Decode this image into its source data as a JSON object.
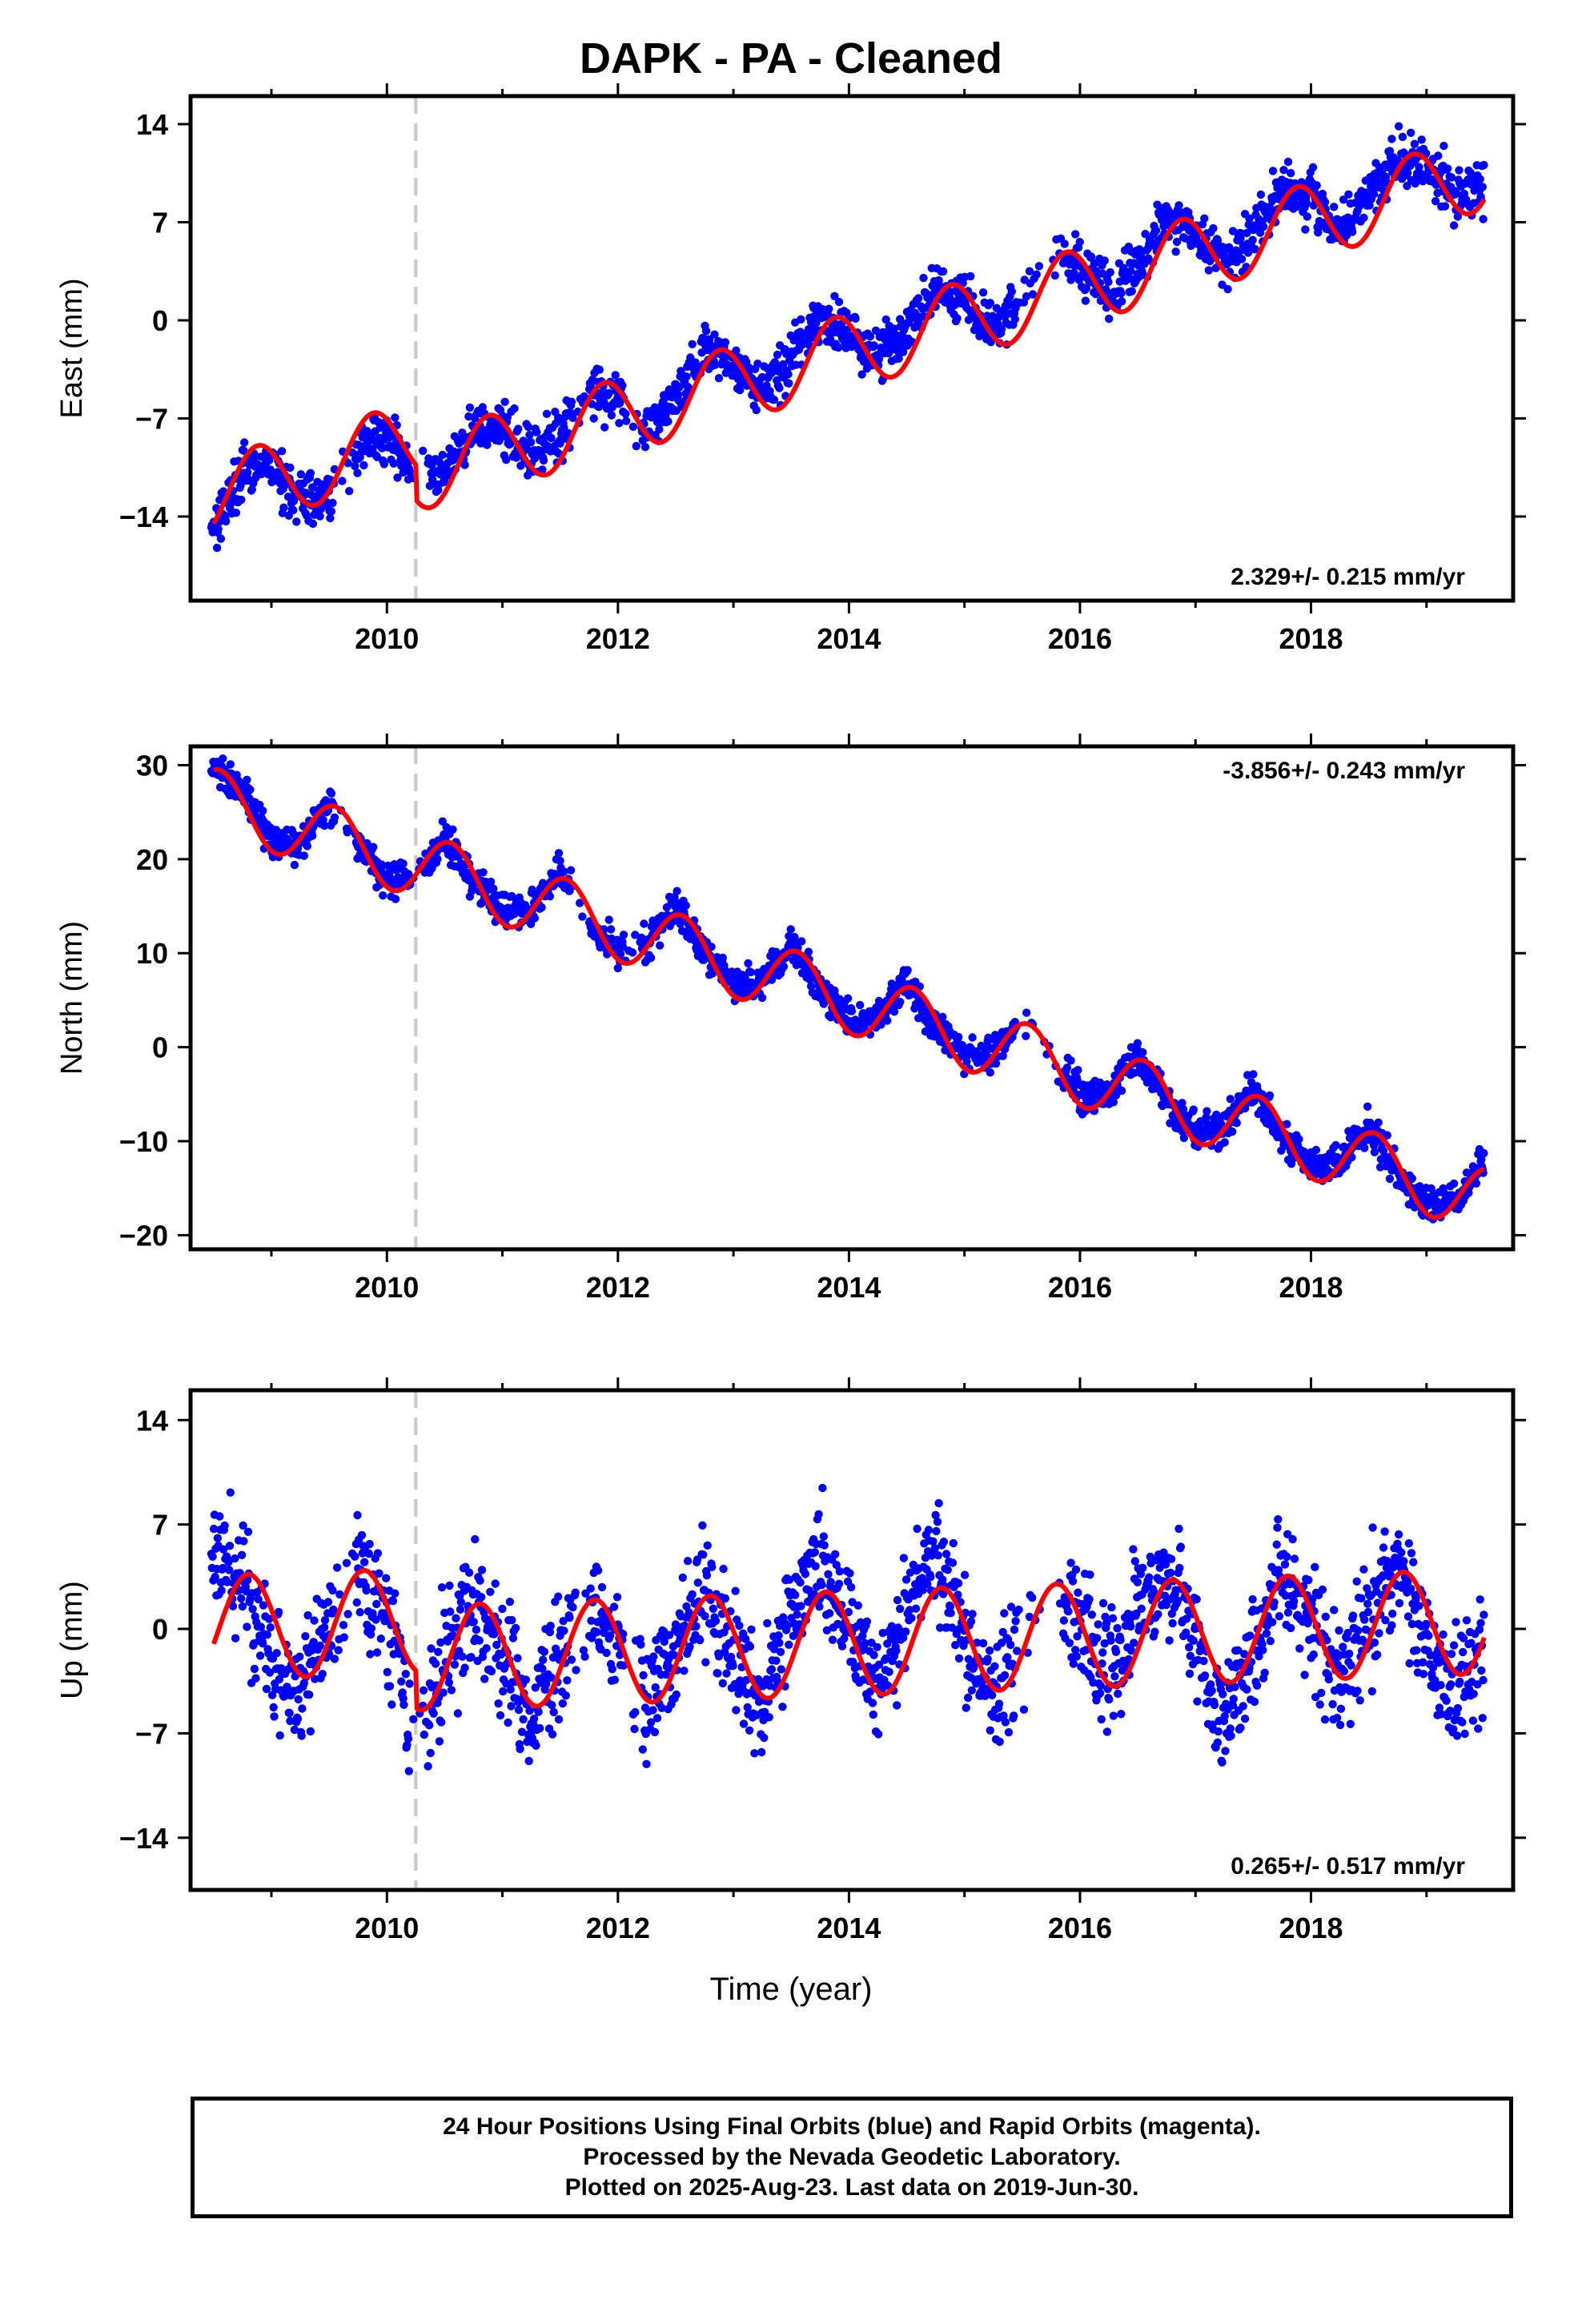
{
  "title": "DAPK  - PA - Cleaned",
  "xaxis_title": "Time (year)",
  "footer": {
    "line1": "24 Hour Positions Using Final Orbits (blue) and Rapid Orbits (magenta).",
    "line2": "Processed by the Nevada Geodetic Laboratory.",
    "line3": "Plotted on 2025-Aug-23. Last data on 2019-Jun-30."
  },
  "colors": {
    "data_points": "#0000ff",
    "model": "#ff0000",
    "equipment_change": "#c8c8c8"
  },
  "chart_data": [
    {
      "type": "scatter",
      "ylabel": "East (mm)",
      "rate_text": "2.329+/- 0.215 mm/yr",
      "rate_position": "bottom-right",
      "xlim": [
        2008.3,
        2019.75
      ],
      "ylim": [
        -20,
        16
      ],
      "xticks": [
        2010,
        2012,
        2014,
        2016,
        2018
      ],
      "yticks": [
        -14,
        -7,
        0,
        7,
        14
      ],
      "equipment_change_x": 2010.25,
      "model": {
        "start_year": 2008.5,
        "start_value": -14.5,
        "rate": 2.33,
        "amplitude": 2.7,
        "peak_month_phase": 0.88,
        "jump": -2.5
      },
      "series": [
        {
          "name": "",
          "x": [
            2008.5,
            2008.75,
            2009.0,
            2009.25,
            2009.5,
            2009.75,
            2010.0,
            2010.25,
            2010.5,
            2010.75,
            2011.0,
            2011.25,
            2011.5,
            2011.75,
            2012.0,
            2012.25,
            2012.5,
            2012.75,
            2013.0,
            2013.25,
            2013.5,
            2013.75,
            2014.0,
            2014.25,
            2014.5,
            2014.75,
            2015.0,
            2015.25,
            2015.5,
            2015.75,
            2016.0,
            2016.25,
            2016.5,
            2016.75,
            2017.0,
            2017.25,
            2017.5,
            2017.75,
            2018.0,
            2018.25,
            2018.5,
            2018.75,
            2019.0,
            2019.25,
            2019.5
          ],
          "values": [
            -14.5,
            -11.0,
            -10.5,
            -12.8,
            -12.5,
            -9.0,
            -8.5,
            -10.5,
            -11.0,
            -7.5,
            -7.8,
            -10.0,
            -8.0,
            -4.8,
            -5.5,
            -7.5,
            -5.5,
            -2.2,
            -3.0,
            -5.0,
            -2.8,
            0.3,
            -0.8,
            -2.8,
            -0.6,
            2.3,
            1.5,
            -0.6,
            1.6,
            4.7,
            3.9,
            1.7,
            3.9,
            7.0,
            6.4,
            4.1,
            6.3,
            9.3,
            8.7,
            6.5,
            8.7,
            11.7,
            11.0,
            8.8,
            10.0
          ]
        }
      ]
    },
    {
      "type": "scatter",
      "ylabel": "North (mm)",
      "rate_text": "-3.856+/- 0.243 mm/yr",
      "rate_position": "top-right",
      "xlim": [
        2008.3,
        2019.75
      ],
      "ylim": [
        -21.5,
        32
      ],
      "xticks": [
        2010,
        2012,
        2014,
        2016,
        2018
      ],
      "yticks": [
        -20,
        -10,
        0,
        10,
        20,
        30
      ],
      "equipment_change_x": 2010.25,
      "model": {
        "start_year": 2008.5,
        "start_value": 29.5,
        "rate": -3.86,
        "amplitude": 3.5,
        "peak_month_phase": 0.55,
        "jump": 0
      },
      "series": [
        {
          "name": "",
          "x": [
            2008.5,
            2008.75,
            2009.0,
            2009.25,
            2009.5,
            2009.75,
            2010.0,
            2010.25,
            2010.5,
            2010.75,
            2011.0,
            2011.25,
            2011.5,
            2011.75,
            2012.0,
            2012.25,
            2012.5,
            2012.75,
            2013.0,
            2013.25,
            2013.5,
            2013.75,
            2014.0,
            2014.25,
            2014.5,
            2014.75,
            2015.0,
            2015.25,
            2015.5,
            2015.75,
            2016.0,
            2016.25,
            2016.5,
            2016.75,
            2017.0,
            2017.25,
            2017.5,
            2017.75,
            2018.0,
            2018.25,
            2018.5,
            2018.75,
            2019.0,
            2019.25,
            2019.5
          ],
          "values": [
            29.5,
            27.5,
            22.0,
            21.5,
            26.0,
            22.0,
            18.0,
            18.0,
            22.5,
            17.5,
            14.5,
            14.5,
            18.5,
            13.0,
            10.5,
            11.0,
            15.0,
            10.0,
            7.0,
            7.0,
            11.0,
            6.0,
            3.0,
            3.0,
            7.0,
            2.0,
            -1.0,
            -1.0,
            3.5,
            -1.5,
            -5.0,
            -5.0,
            -1.0,
            -5.5,
            -9.0,
            -8.5,
            -4.5,
            -9.5,
            -13.0,
            -12.5,
            -8.5,
            -13.5,
            -16.5,
            -16.5,
            -12.0
          ]
        }
      ]
    },
    {
      "type": "scatter",
      "ylabel": "Up (mm)",
      "rate_text": "0.265+/- 0.517 mm/yr",
      "rate_position": "bottom-right",
      "xlim": [
        2008.3,
        2019.75
      ],
      "ylim": [
        -17.5,
        16
      ],
      "xticks": [
        2010,
        2012,
        2014,
        2016,
        2018
      ],
      "yticks": [
        -14,
        -7,
        0,
        7,
        14
      ],
      "equipment_change_x": 2010.25,
      "model": {
        "start_year": 2008.5,
        "start_value": -1.0,
        "rate": 0.265,
        "amplitude": 3.5,
        "peak_month_phase": 0.8,
        "jump": -2.5
      },
      "series": [
        {
          "name": "",
          "x": [
            2008.5,
            2008.75,
            2009.0,
            2009.25,
            2009.5,
            2009.75,
            2010.0,
            2010.25,
            2010.5,
            2010.75,
            2011.0,
            2011.25,
            2011.5,
            2011.75,
            2012.0,
            2012.25,
            2012.5,
            2012.75,
            2013.0,
            2013.25,
            2013.5,
            2013.75,
            2014.0,
            2014.25,
            2014.5,
            2014.75,
            2015.0,
            2015.25,
            2015.5,
            2015.75,
            2016.0,
            2016.25,
            2016.5,
            2016.75,
            2017.0,
            2017.25,
            2017.5,
            2017.75,
            2018.0,
            2018.25,
            2018.5,
            2018.75,
            2019.0,
            2019.25,
            2019.5
          ],
          "values": [
            5.0,
            3.0,
            -2.0,
            -4.0,
            0.0,
            4.0,
            1.0,
            -6.0,
            -2.0,
            1.5,
            -2.0,
            -6.0,
            -1.5,
            2.0,
            -1.5,
            -5.0,
            -1.0,
            2.5,
            -2.0,
            -5.0,
            1.0,
            4.5,
            0.5,
            -4.0,
            2.0,
            5.0,
            0.0,
            -5.0,
            -0.5,
            3.0,
            0.5,
            -4.0,
            1.5,
            4.5,
            -0.5,
            -7.0,
            -1.0,
            3.5,
            0.5,
            -4.0,
            1.0,
            4.0,
            -1.0,
            -4.5,
            -2.0
          ]
        }
      ]
    }
  ]
}
